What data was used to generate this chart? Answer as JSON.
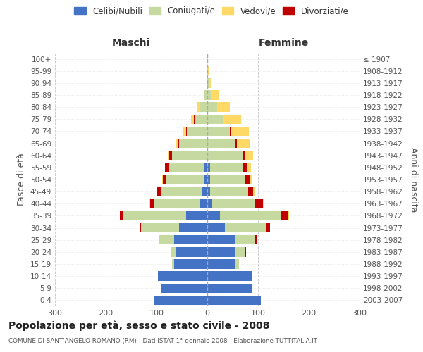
{
  "age_groups": [
    "0-4",
    "5-9",
    "10-14",
    "15-19",
    "20-24",
    "25-29",
    "30-34",
    "35-39",
    "40-44",
    "45-49",
    "50-54",
    "55-59",
    "60-64",
    "65-69",
    "70-74",
    "75-79",
    "80-84",
    "85-89",
    "90-94",
    "95-99",
    "100+"
  ],
  "birth_years": [
    "2003-2007",
    "1998-2002",
    "1993-1997",
    "1988-1992",
    "1983-1987",
    "1978-1982",
    "1973-1977",
    "1968-1972",
    "1963-1967",
    "1958-1962",
    "1953-1957",
    "1948-1952",
    "1943-1947",
    "1938-1942",
    "1933-1937",
    "1928-1932",
    "1923-1927",
    "1918-1922",
    "1913-1917",
    "1908-1912",
    "≤ 1907"
  ],
  "males": {
    "celibi": [
      105,
      92,
      97,
      65,
      62,
      65,
      55,
      42,
      15,
      10,
      5,
      5,
      0,
      0,
      0,
      0,
      0,
      0,
      0,
      0,
      0
    ],
    "coniugati": [
      0,
      0,
      0,
      5,
      10,
      30,
      75,
      125,
      90,
      80,
      75,
      70,
      70,
      55,
      40,
      25,
      15,
      5,
      2,
      0,
      0
    ],
    "vedovi": [
      0,
      0,
      0,
      0,
      0,
      0,
      0,
      0,
      1,
      1,
      1,
      1,
      2,
      3,
      5,
      5,
      5,
      2,
      0,
      0,
      0
    ],
    "divorziati": [
      0,
      0,
      0,
      0,
      0,
      0,
      3,
      5,
      8,
      8,
      8,
      8,
      5,
      3,
      2,
      2,
      0,
      0,
      0,
      0,
      0
    ]
  },
  "females": {
    "nubili": [
      105,
      87,
      87,
      55,
      55,
      55,
      35,
      25,
      10,
      5,
      5,
      5,
      0,
      0,
      0,
      0,
      0,
      0,
      0,
      0,
      0
    ],
    "coniugate": [
      0,
      0,
      0,
      8,
      20,
      40,
      80,
      120,
      85,
      75,
      70,
      65,
      70,
      55,
      45,
      30,
      20,
      8,
      3,
      2,
      0
    ],
    "vedove": [
      0,
      0,
      0,
      0,
      0,
      0,
      0,
      1,
      2,
      3,
      5,
      8,
      15,
      25,
      35,
      35,
      25,
      15,
      5,
      2,
      2
    ],
    "divorziate": [
      0,
      0,
      0,
      0,
      1,
      3,
      8,
      15,
      15,
      10,
      8,
      8,
      5,
      3,
      2,
      2,
      0,
      0,
      0,
      0,
      0
    ]
  },
  "colors": {
    "celibi": "#4472C4",
    "coniugati": "#c5d9a0",
    "vedovi": "#FFD966",
    "divorziati": "#C00000"
  },
  "xlim": 300,
  "title": "Popolazione per età, sesso e stato civile - 2008",
  "subtitle": "COMUNE DI SANT'ANGELO ROMANO (RM) - Dati ISTAT 1° gennaio 2008 - Elaborazione TUTTITALIA.IT",
  "ylabel_left": "Fasce di età",
  "ylabel_right": "Anni di nascita",
  "xlabel_left": "Maschi",
  "xlabel_right": "Femmine"
}
